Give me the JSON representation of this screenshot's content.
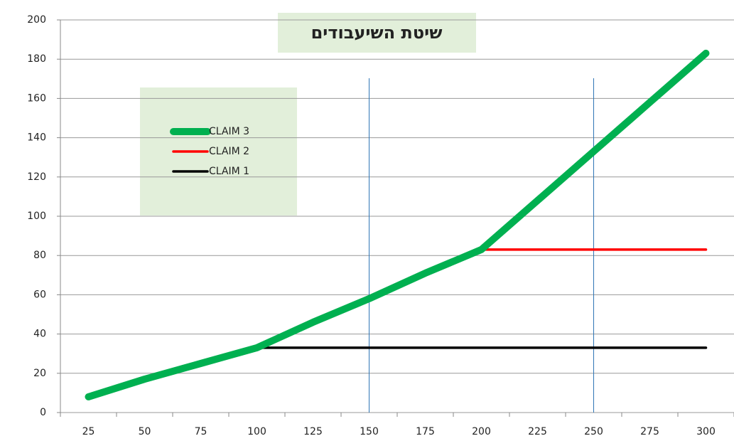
{
  "chart_data": {
    "type": "line",
    "title": "שיטת השיעבודים",
    "categories": [
      25,
      50,
      75,
      100,
      125,
      150,
      175,
      200,
      225,
      250,
      275,
      300
    ],
    "series": [
      {
        "name": "CLAIM 1",
        "color": "#000000",
        "values": [
          null,
          null,
          null,
          33,
          33,
          33,
          33,
          33,
          33,
          33,
          33,
          33
        ]
      },
      {
        "name": "CLAIM 2",
        "color": "#ff0000",
        "values": [
          null,
          null,
          null,
          null,
          null,
          null,
          null,
          83,
          83,
          83,
          83,
          83
        ]
      },
      {
        "name": "CLAIM 3",
        "color": "#00b050",
        "values": [
          8,
          17,
          25,
          33,
          46,
          58,
          71,
          83,
          108,
          133,
          158,
          183
        ]
      }
    ],
    "vlines": [
      150,
      250
    ],
    "ylim": [
      0,
      200
    ],
    "yticks": [
      0,
      20,
      40,
      60,
      80,
      100,
      120,
      140,
      160,
      180,
      200
    ],
    "grid": true
  }
}
